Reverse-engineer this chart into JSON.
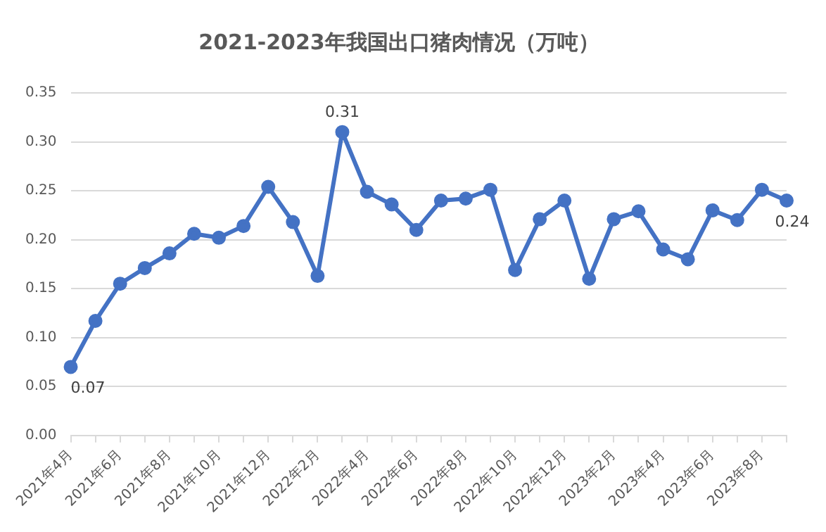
{
  "chart_data": {
    "type": "line",
    "title": "2021-2023年我国出口猪肉情况（万吨）",
    "categories": [
      "2021年4月",
      null,
      "2021年6月",
      null,
      "2021年8月",
      null,
      "2021年10月",
      null,
      "2021年12月",
      null,
      "2022年2月",
      null,
      "2022年4月",
      null,
      "2022年6月",
      null,
      "2022年8月",
      null,
      "2022年10月",
      null,
      "2022年12月",
      null,
      "2023年2月",
      null,
      "2023年4月",
      null,
      "2023年6月",
      null,
      "2023年8月",
      null
    ],
    "series": [
      {
        "color": "#4472c4",
        "values": [
          0.07,
          0.117,
          0.155,
          0.171,
          0.186,
          0.206,
          0.202,
          0.214,
          0.254,
          0.218,
          0.163,
          0.31,
          0.249,
          0.236,
          0.21,
          0.24,
          0.242,
          0.251,
          0.169,
          0.221,
          0.24,
          0.16,
          0.221,
          0.229,
          0.19,
          0.18,
          0.23,
          0.22,
          0.251,
          0.24
        ],
        "value_labels": [
          "0.07",
          null,
          null,
          null,
          null,
          null,
          null,
          null,
          null,
          null,
          null,
          "0.31",
          null,
          null,
          null,
          null,
          null,
          null,
          null,
          null,
          null,
          null,
          null,
          null,
          null,
          null,
          null,
          null,
          null,
          "0.24"
        ]
      }
    ],
    "ylim": [
      0,
      0.35
    ],
    "yticks": [
      {
        "value": 0,
        "label": "0.00"
      },
      {
        "value": 0.05,
        "label": "0.05"
      },
      {
        "value": 0.1,
        "label": "0.10"
      },
      {
        "value": 0.15,
        "label": "0.15"
      },
      {
        "value": 0.2,
        "label": "0.20"
      },
      {
        "value": 0.25,
        "label": "0.25"
      },
      {
        "value": 0.3,
        "label": "0.30"
      },
      {
        "value": 0.35,
        "label": "0.35"
      }
    ],
    "grid": "y",
    "legend": false,
    "marker": "circle",
    "line_style": "solid"
  }
}
